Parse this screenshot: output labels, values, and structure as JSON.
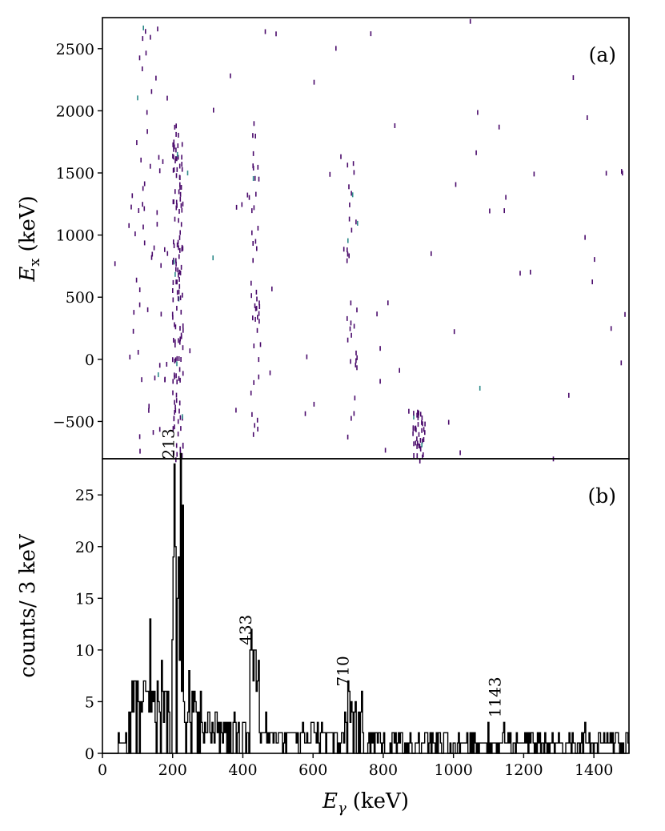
{
  "chart_data": [
    {
      "panel": "(a)",
      "type": "heatmap",
      "ylabel_main": "E",
      "ylabel_sub": "x",
      "ylabel_unit": "(keV)",
      "xlim": [
        0,
        1500
      ],
      "ylim": [
        -800,
        2750
      ],
      "yticks": [
        "2500",
        "2000",
        "1500",
        "1000",
        "500",
        "0",
        "−500"
      ],
      "ytick_values": [
        2500,
        2000,
        1500,
        1000,
        500,
        0,
        -500
      ],
      "colors": {
        "dominant": "#4a0a6b",
        "secondary": "#2e8a8a"
      },
      "density_bands": [
        {
          "center": 213,
          "width": 30,
          "ymin": -800,
          "ymax": 1900,
          "density": 0.9
        },
        {
          "center": 433,
          "width": 25,
          "ymin": -800,
          "ymax": 2000,
          "density": 0.25
        },
        {
          "center": 710,
          "width": 30,
          "ymin": -600,
          "ymax": 1700,
          "density": 0.2
        },
        {
          "center": 900,
          "width": 35,
          "ymin": -800,
          "ymax": -400,
          "density": 0.25
        },
        {
          "center": 130,
          "width": 110,
          "ymin": -800,
          "ymax": 2700,
          "density": 0.35
        },
        {
          "center": 750,
          "width": 1500,
          "ymin": -800,
          "ymax": 2750,
          "density": 0.18
        }
      ]
    },
    {
      "panel": "(b)",
      "type": "line",
      "style": "step histogram",
      "xlabel_main": "E",
      "xlabel_sub": "γ",
      "xlabel_unit": "(keV)",
      "ylabel": "counts/ 3 keV",
      "xlim": [
        0,
        1500
      ],
      "ylim": [
        0,
        28.5
      ],
      "xticks": [
        "0",
        "200",
        "400",
        "600",
        "800",
        "1000",
        "1200",
        "1400"
      ],
      "xtick_values": [
        0,
        200,
        400,
        600,
        800,
        1000,
        1200,
        1400
      ],
      "yticks": [
        "0",
        "5",
        "10",
        "15",
        "20",
        "25"
      ],
      "ytick_values": [
        0,
        5,
        10,
        15,
        20,
        25
      ],
      "bin_width": 3,
      "peaks": [
        {
          "x": 213,
          "label": "213",
          "height": 28
        },
        {
          "x": 433,
          "label": "433",
          "height": 10
        },
        {
          "x": 710,
          "label": "710",
          "height": 6
        },
        {
          "x": 1143,
          "label": "1143",
          "height": 3
        }
      ],
      "segments": [
        {
          "x_start": 45,
          "x_end": 80,
          "level": 1
        },
        {
          "x_start": 80,
          "x_end": 200,
          "level": 4
        },
        {
          "x_start": 200,
          "x_end": 230,
          "level": 17
        },
        {
          "x_start": 230,
          "x_end": 280,
          "level": 3.5
        },
        {
          "x_start": 280,
          "x_end": 420,
          "level": 2
        },
        {
          "x_start": 420,
          "x_end": 445,
          "level": 7
        },
        {
          "x_start": 445,
          "x_end": 690,
          "level": 1.5
        },
        {
          "x_start": 690,
          "x_end": 740,
          "level": 4
        },
        {
          "x_start": 740,
          "x_end": 1500,
          "level": 1.1
        }
      ],
      "spikes": [
        {
          "x": 75,
          "y": 4
        },
        {
          "x": 85,
          "y": 7
        },
        {
          "x": 95,
          "y": 7
        },
        {
          "x": 110,
          "y": 5
        },
        {
          "x": 125,
          "y": 6
        },
        {
          "x": 137,
          "y": 13
        },
        {
          "x": 145,
          "y": 5
        },
        {
          "x": 157,
          "y": 7
        },
        {
          "x": 170,
          "y": 9
        },
        {
          "x": 180,
          "y": 6
        },
        {
          "x": 190,
          "y": 4
        },
        {
          "x": 198,
          "y": 11
        },
        {
          "x": 203,
          "y": 19
        },
        {
          "x": 206,
          "y": 28
        },
        {
          "x": 209,
          "y": 20
        },
        {
          "x": 213,
          "y": 15
        },
        {
          "x": 219,
          "y": 9
        },
        {
          "x": 225,
          "y": 6
        },
        {
          "x": 248,
          "y": 8
        },
        {
          "x": 262,
          "y": 6
        },
        {
          "x": 300,
          "y": 4
        },
        {
          "x": 325,
          "y": 4
        },
        {
          "x": 345,
          "y": 3
        },
        {
          "x": 375,
          "y": 4
        },
        {
          "x": 428,
          "y": 10
        },
        {
          "x": 433,
          "y": 10
        },
        {
          "x": 438,
          "y": 6
        },
        {
          "x": 465,
          "y": 4
        },
        {
          "x": 545,
          "y": 2
        },
        {
          "x": 600,
          "y": 3
        },
        {
          "x": 640,
          "y": 2
        },
        {
          "x": 703,
          "y": 6
        },
        {
          "x": 712,
          "y": 4
        },
        {
          "x": 722,
          "y": 5
        },
        {
          "x": 730,
          "y": 4
        },
        {
          "x": 765,
          "y": 2
        },
        {
          "x": 830,
          "y": 2
        },
        {
          "x": 900,
          "y": 2
        },
        {
          "x": 975,
          "y": 2
        },
        {
          "x": 1040,
          "y": 2
        },
        {
          "x": 1100,
          "y": 3
        },
        {
          "x": 1143,
          "y": 3
        },
        {
          "x": 1210,
          "y": 2
        },
        {
          "x": 1260,
          "y": 2
        },
        {
          "x": 1330,
          "y": 2
        },
        {
          "x": 1375,
          "y": 3
        },
        {
          "x": 1430,
          "y": 2
        },
        {
          "x": 1495,
          "y": 2
        }
      ]
    }
  ]
}
